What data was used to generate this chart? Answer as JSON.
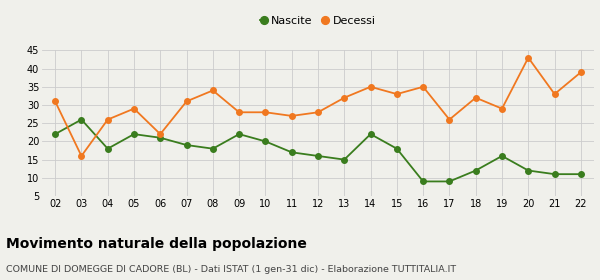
{
  "years": [
    "02",
    "03",
    "04",
    "05",
    "06",
    "07",
    "08",
    "09",
    "10",
    "11",
    "12",
    "13",
    "14",
    "15",
    "16",
    "17",
    "18",
    "19",
    "20",
    "21",
    "22"
  ],
  "nascite": [
    22,
    26,
    18,
    22,
    21,
    19,
    18,
    22,
    20,
    17,
    16,
    15,
    22,
    18,
    9,
    9,
    12,
    16,
    12,
    11,
    11
  ],
  "decessi": [
    31,
    16,
    26,
    29,
    22,
    31,
    34,
    28,
    28,
    27,
    28,
    32,
    35,
    33,
    35,
    26,
    32,
    29,
    43,
    33,
    39
  ],
  "nascite_color": "#3a7d1e",
  "decessi_color": "#f07820",
  "background_color": "#f0f0eb",
  "grid_color": "#cccccc",
  "ylim": [
    5,
    45
  ],
  "yticks": [
    5,
    10,
    15,
    20,
    25,
    30,
    35,
    40,
    45
  ],
  "title": "Movimento naturale della popolazione",
  "subtitle": "COMUNE DI DOMEGGE DI CADORE (BL) - Dati ISTAT (1 gen-31 dic) - Elaborazione TUTTITALIA.IT",
  "legend_nascite": "Nascite",
  "legend_decessi": "Decessi",
  "title_fontsize": 10,
  "subtitle_fontsize": 6.8,
  "tick_fontsize": 7,
  "marker_size": 4,
  "linewidth": 1.3
}
